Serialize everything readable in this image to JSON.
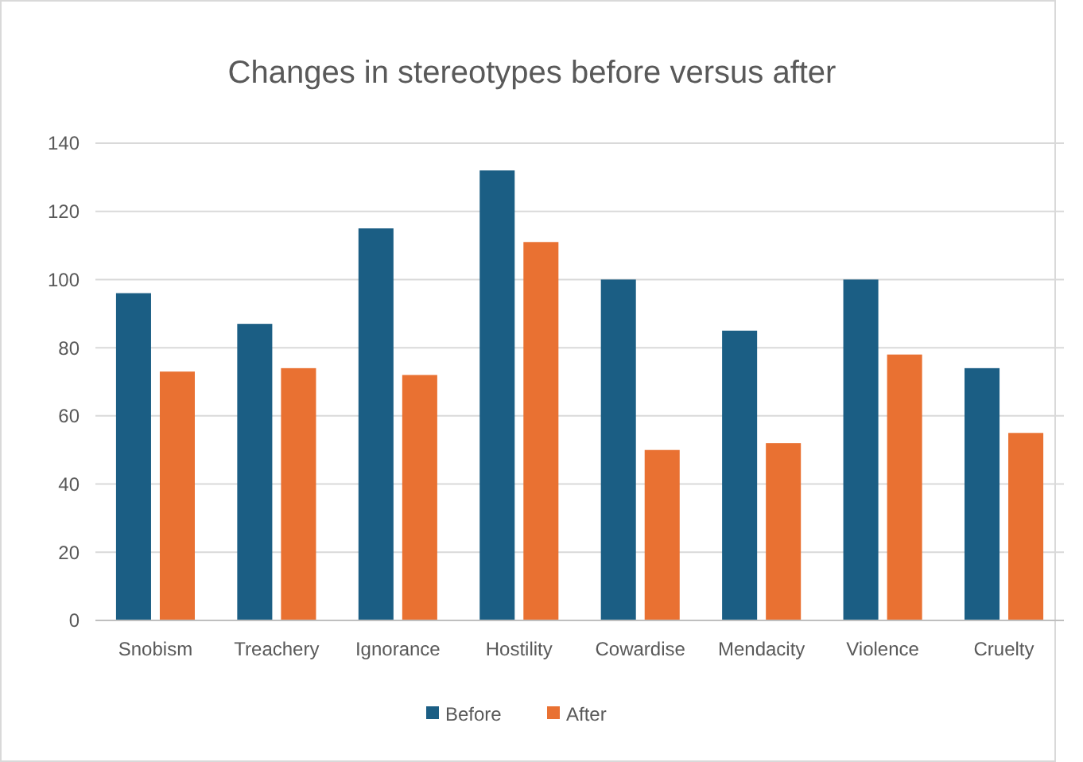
{
  "chart_data": {
    "type": "bar",
    "title": "Changes in stereotypes before versus after",
    "categories": [
      "Snobism",
      "Treachery",
      "Ignorance",
      "Hostility",
      "Cowardise",
      "Mendacity",
      "Violence",
      "Cruelty"
    ],
    "series": [
      {
        "name": "Before",
        "color": "#1b5e84",
        "values": [
          96,
          87,
          115,
          132,
          100,
          85,
          100,
          74
        ]
      },
      {
        "name": "After",
        "color": "#e97132",
        "values": [
          73,
          74,
          72,
          111,
          50,
          52,
          78,
          55
        ]
      }
    ],
    "ylim": [
      0,
      140
    ],
    "yticks": [
      0,
      20,
      40,
      60,
      80,
      100,
      120,
      140
    ],
    "grid": "y",
    "legend": "bottom"
  }
}
